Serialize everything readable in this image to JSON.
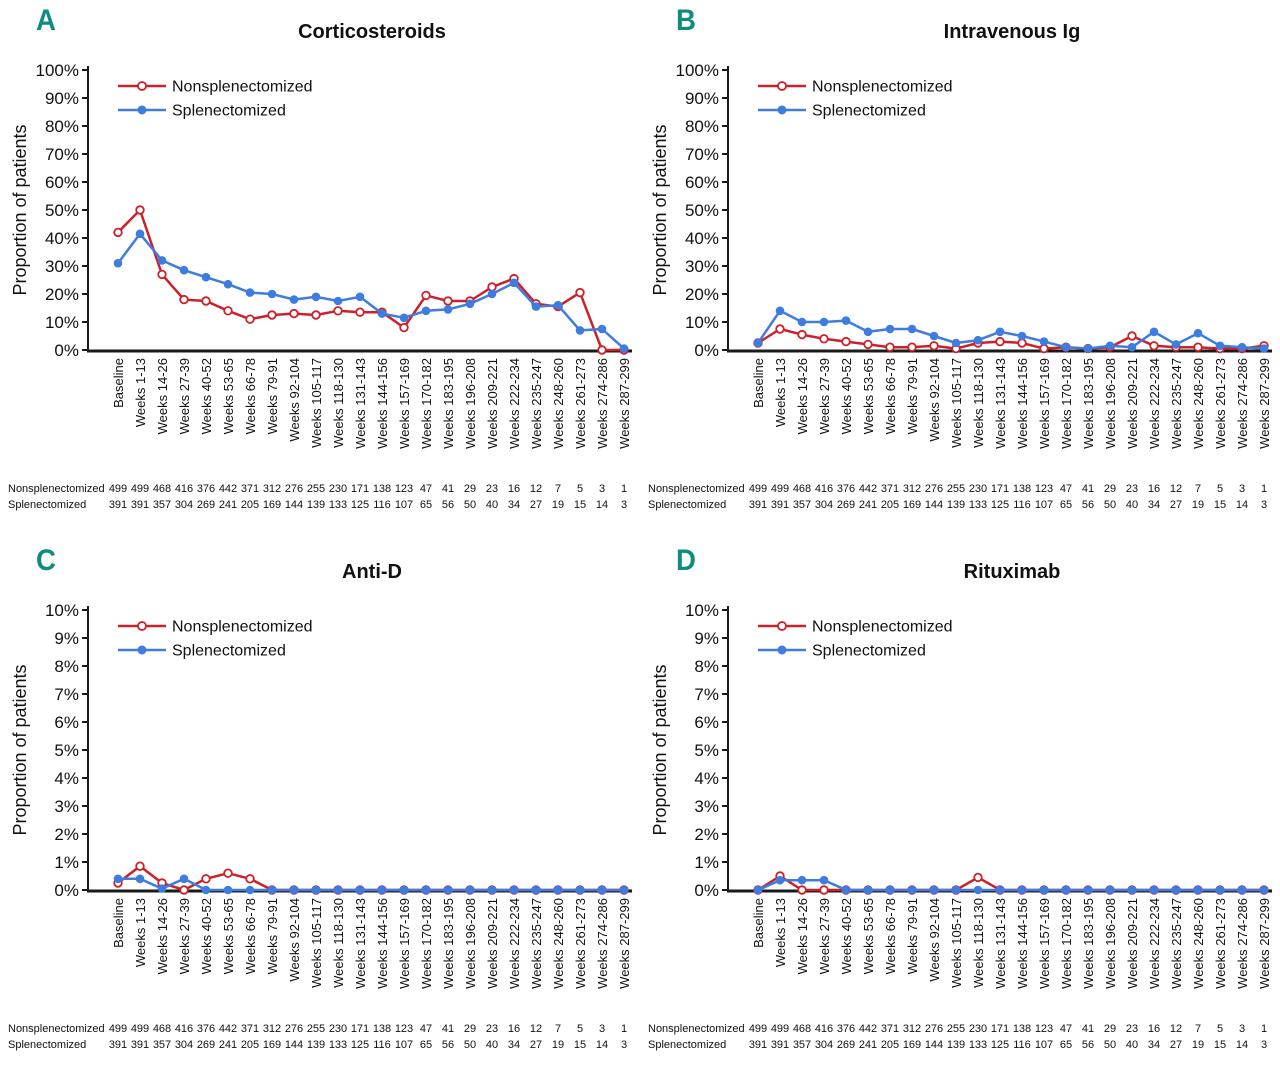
{
  "colors": {
    "nonsplenectomized": "#cc2128",
    "splenectomized": "#3e7ce0",
    "panel_letter": "#0d8c7f",
    "axis": "#1a1a1a"
  },
  "legend": {
    "nonsplenectomized_label": "Nonsplenectomized",
    "splenectomized_label": "Splenectomized"
  },
  "y_axis_label": "Proportion of patients",
  "panel_letters": {
    "a": "A",
    "b": "B",
    "c": "C",
    "d": "D"
  },
  "chart_data": {
    "type": "line",
    "categories": [
      "Baseline",
      "Weeks 1-13",
      "Weeks 14-26",
      "Weeks 27-39",
      "Weeks 40-52",
      "Weeks 53-65",
      "Weeks 66-78",
      "Weeks 79-91",
      "Weeks 92-104",
      "Weeks 105-117",
      "Weeks 118-130",
      "Weeks 131-143",
      "Weeks 144-156",
      "Weeks 157-169",
      "Weeks 170-182",
      "Weeks 183-195",
      "Weeks 196-208",
      "Weeks 209-221",
      "Weeks 222-234",
      "Weeks 235-247",
      "Weeks 248-260",
      "Weeks 261-273",
      "Weeks 274-286",
      "Weeks 287-299"
    ],
    "legend_position": "top-left-inside",
    "grid": false,
    "ylabel": "Proportion of patients",
    "panels": [
      {
        "letter": "A",
        "title": "Corticosteroids",
        "ylim": [
          0,
          100
        ],
        "ytick_step": 10,
        "ytick_labels": [
          "0%",
          "10%",
          "20%",
          "30%",
          "40%",
          "50%",
          "60%",
          "70%",
          "80%",
          "90%",
          "100%"
        ],
        "series": [
          {
            "name": "Nonsplenectomized",
            "marker": "open-circle",
            "values": [
              42,
              50,
              27,
              18,
              17.5,
              14,
              11,
              12.5,
              13,
              12.5,
              14,
              13.5,
              13.5,
              8,
              19.5,
              17.5,
              17.5,
              22.5,
              25.5,
              16.5,
              15.5,
              20.5,
              0,
              0
            ]
          },
          {
            "name": "Splenectomized",
            "marker": "filled-circle",
            "values": [
              31,
              41.5,
              32,
              28.5,
              26,
              23.5,
              20.5,
              20,
              18,
              19,
              17.5,
              19,
              13,
              11.5,
              14,
              14.5,
              16.5,
              20,
              24,
              15.5,
              16,
              7,
              7.5,
              0.5
            ]
          }
        ]
      },
      {
        "letter": "B",
        "title": "Intravenous Ig",
        "ylim": [
          0,
          100
        ],
        "ytick_step": 10,
        "ytick_labels": [
          "0%",
          "10%",
          "20%",
          "30%",
          "40%",
          "50%",
          "60%",
          "70%",
          "80%",
          "90%",
          "100%"
        ],
        "series": [
          {
            "name": "Nonsplenectomized",
            "marker": "open-circle",
            "values": [
              2.5,
              7.5,
              5.5,
              4,
              3,
              2,
              1,
              1,
              1.5,
              0.5,
              2.5,
              3,
              2.5,
              0.5,
              1,
              0.5,
              1,
              5,
              1.5,
              1,
              1,
              0.5,
              0.5,
              1.5
            ]
          },
          {
            "name": "Splenectomized",
            "marker": "filled-circle",
            "values": [
              2.5,
              14,
              10,
              10,
              10.5,
              6.5,
              7.5,
              7.5,
              5,
              2.5,
              3.5,
              6.5,
              5,
              3,
              1,
              0.5,
              1.5,
              1,
              6.5,
              2,
              6,
              1.5,
              1,
              0.5
            ]
          }
        ]
      },
      {
        "letter": "C",
        "title": "Anti-D",
        "ylim": [
          0,
          10
        ],
        "ytick_step": 1,
        "ytick_labels": [
          "0%",
          "1%",
          "2%",
          "3%",
          "4%",
          "5%",
          "6%",
          "7%",
          "8%",
          "9%",
          "10%"
        ],
        "series": [
          {
            "name": "Nonsplenectomized",
            "marker": "open-circle",
            "values": [
              0.25,
              0.85,
              0.25,
              0,
              0.4,
              0.6,
              0.4,
              0,
              0,
              0,
              0,
              0,
              0,
              0,
              0,
              0,
              0,
              0,
              0,
              0,
              0,
              0,
              0,
              0
            ]
          },
          {
            "name": "Splenectomized",
            "marker": "filled-circle",
            "values": [
              0.4,
              0.4,
              0.05,
              0.4,
              0,
              0,
              0,
              0,
              0,
              0,
              0,
              0,
              0,
              0,
              0,
              0,
              0,
              0,
              0,
              0,
              0,
              0,
              0,
              0
            ]
          }
        ]
      },
      {
        "letter": "D",
        "title": "Rituximab",
        "ylim": [
          0,
          10
        ],
        "ytick_step": 1,
        "ytick_labels": [
          "0%",
          "1%",
          "2%",
          "3%",
          "4%",
          "5%",
          "6%",
          "7%",
          "8%",
          "9%",
          "10%"
        ],
        "series": [
          {
            "name": "Nonsplenectomized",
            "marker": "open-circle",
            "values": [
              0,
              0.5,
              0,
              0,
              0,
              0,
              0,
              0,
              0,
              0,
              0.45,
              0,
              0,
              0,
              0,
              0,
              0,
              0,
              0,
              0,
              0,
              0,
              0,
              0
            ]
          },
          {
            "name": "Splenectomized",
            "marker": "filled-circle",
            "values": [
              0,
              0.35,
              0.35,
              0.35,
              0,
              0,
              0,
              0,
              0,
              0,
              0,
              0,
              0,
              0,
              0,
              0,
              0,
              0,
              0,
              0,
              0,
              0,
              0,
              0
            ]
          }
        ]
      }
    ],
    "n_table": {
      "rows": [
        {
          "label": "Nonsplenectomized",
          "values": [
            499,
            499,
            468,
            416,
            376,
            442,
            371,
            312,
            276,
            255,
            230,
            171,
            138,
            123,
            47,
            41,
            29,
            23,
            16,
            12,
            7,
            5,
            3,
            1
          ]
        },
        {
          "label": "Splenectomized",
          "values": [
            391,
            391,
            357,
            304,
            269,
            241,
            205,
            169,
            144,
            139,
            133,
            125,
            116,
            107,
            65,
            56,
            50,
            40,
            34,
            27,
            19,
            15,
            14,
            3
          ]
        }
      ]
    }
  }
}
